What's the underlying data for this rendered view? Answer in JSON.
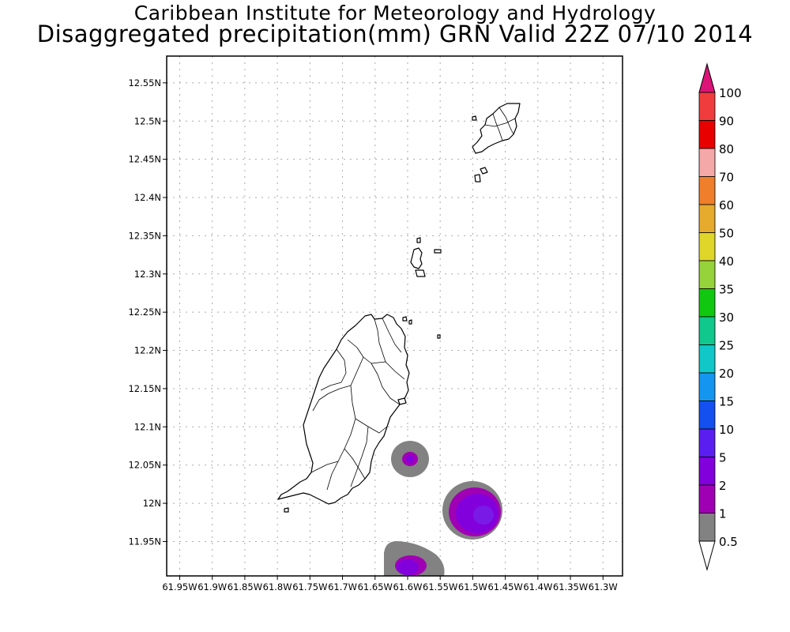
{
  "title": {
    "line1": "Caribbean Institute for Meteorology and Hydrology",
    "line2": "Disaggregated precipitation(mm) GRN Valid 22Z 07/10 2014"
  },
  "map": {
    "lat_labels": [
      "12.55N",
      "12.5N",
      "12.45N",
      "12.4N",
      "12.35N",
      "12.3N",
      "12.25N",
      "12.2N",
      "12.15N",
      "12.1N",
      "12.05N",
      "12N",
      "11.95N"
    ],
    "lat_values": [
      12.55,
      12.5,
      12.45,
      12.4,
      12.35,
      12.3,
      12.25,
      12.2,
      12.15,
      12.1,
      12.05,
      12.0,
      11.95
    ],
    "lon_labels": [
      "61.95W",
      "61.9W",
      "61.85W",
      "61.8W",
      "61.75W",
      "61.7W",
      "61.65W",
      "61.6W",
      "61.55W",
      "61.5W",
      "61.45W",
      "61.4W",
      "61.35W",
      "61.3W"
    ],
    "lon_values": [
      -61.95,
      -61.9,
      -61.85,
      -61.8,
      -61.75,
      -61.7,
      -61.65,
      -61.6,
      -61.55,
      -61.5,
      -61.45,
      -61.4,
      -61.35,
      -61.3
    ],
    "extent": {
      "lon_min": -61.97,
      "lon_max": -61.27,
      "lat_min": 11.905,
      "lat_max": 12.585
    },
    "grid": true,
    "precip_cells": [
      {
        "lon": -61.597,
        "lat": 12.051,
        "value_mm": 2
      },
      {
        "lon": -61.488,
        "lat": 11.985,
        "value_mm": 5
      },
      {
        "lon": -61.601,
        "lat": 11.918,
        "value_mm": 2
      }
    ]
  },
  "legend": {
    "levels": [
      "100",
      "90",
      "80",
      "70",
      "60",
      "50",
      "40",
      "35",
      "30",
      "25",
      "20",
      "15",
      "10",
      "5",
      "2",
      "1",
      "0.5"
    ],
    "colors": [
      "#f0308c",
      "#f03c3c",
      "#e80000",
      "#f5a8a8",
      "#ef7f2b",
      "#e6aa2d",
      "#e0d62a",
      "#96d23a",
      "#10c810",
      "#10c88c",
      "#10c8c8",
      "#1496f0",
      "#1450f0",
      "#5a1ef0",
      "#8200dc",
      "#a000b4",
      "#828282"
    ],
    "top_arrow_color": "#dc1478",
    "bottom_arrow_color": "#ffffff"
  }
}
